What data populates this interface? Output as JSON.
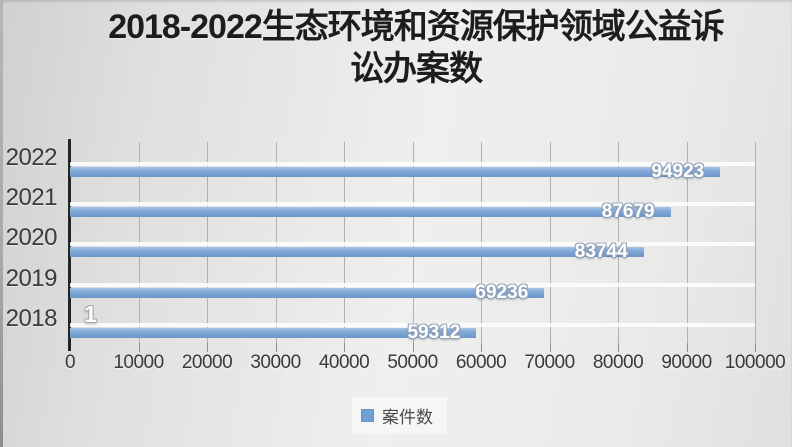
{
  "chart_data": {
    "type": "bar",
    "orientation": "horizontal",
    "title": "2018-2022生态环境和资源保护领域公益诉讼办案数",
    "title_lines": [
      "2018-2022生态环境和资源保护领域公益诉",
      "讼办案数"
    ],
    "categories": [
      "2022",
      "2021",
      "2020",
      "2019",
      "2018"
    ],
    "series": [
      {
        "name": "案件数",
        "values": [
          94923,
          87679,
          83744,
          69236,
          59312
        ]
      }
    ],
    "data_labels": [
      "94923",
      "87679",
      "83744",
      "69236",
      "59312"
    ],
    "extra_label": {
      "category": "2018",
      "text": "1"
    },
    "xlim": [
      0,
      100000
    ],
    "x_ticks": [
      0,
      10000,
      20000,
      30000,
      40000,
      50000,
      60000,
      70000,
      80000,
      90000,
      100000
    ],
    "x_tick_labels": [
      "0",
      "10000",
      "20000",
      "30000",
      "40000",
      "50000",
      "60000",
      "70000",
      "80000",
      "90000",
      "100000"
    ],
    "grid": true,
    "legend": {
      "label": "案件数",
      "position": "bottom"
    },
    "colors": {
      "bar": "#769fd2",
      "bar_light": "#aac5e5",
      "axis_line": "#242426",
      "gridline": "#b1b1b0",
      "title_text": "#1d1d1f",
      "tick_text": "#3a3a3c",
      "value_label_text": "#ffffff",
      "background": "#e9e9e8"
    }
  }
}
